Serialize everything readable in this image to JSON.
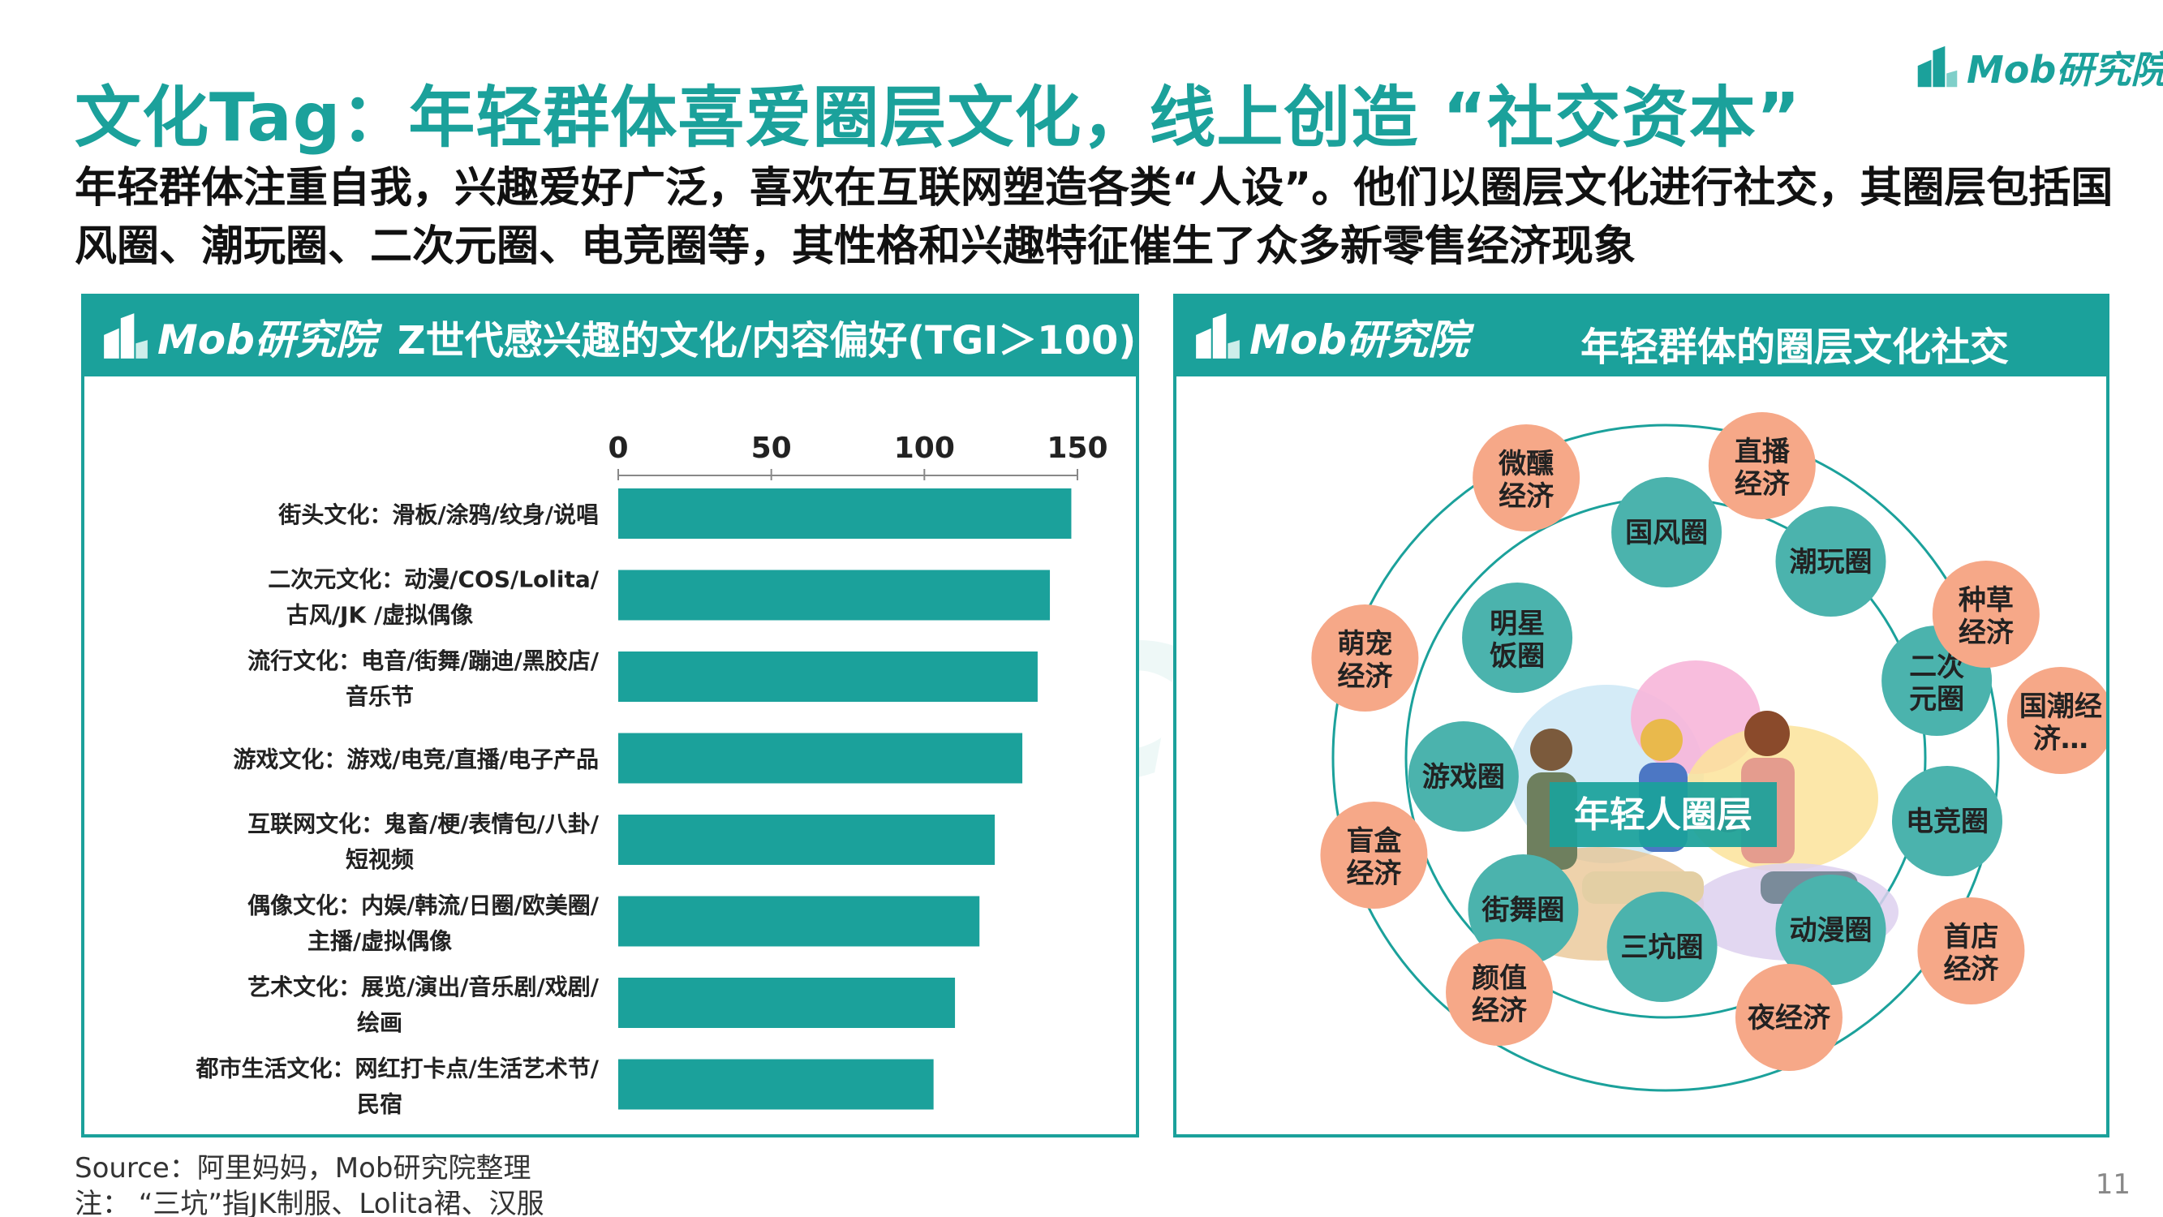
{
  "header": {
    "title": "文化Tag：年轻群体喜爱圈层文化，线上创造 “社交资本”",
    "logo_text": "Mob研究院",
    "subtitle": "年轻群体注重自我，兴趣爱好广泛，喜欢在互联网塑造各类“人设”。他们以圈层文化进行社交，其圈层包括国风圈、潮玩圈、二次元圈、电竞圈等，其性格和兴趣特征催生了众多新零售经济现象"
  },
  "left_panel": {
    "brand": "Mob研究院",
    "title": "Z世代感兴趣的文化/内容偏好(TGI＞100)"
  },
  "right_panel": {
    "brand": "Mob研究院",
    "title": "年轻群体的圈层文化社交",
    "center_label": "年轻人圈层",
    "inner_circles": [
      "国风圈",
      "潮玩圈",
      "明星饭圈",
      "二次元圈",
      "游戏圈",
      "电竞圈",
      "街舞圈",
      "动漫圈",
      "三坑圈"
    ],
    "outer_circles": [
      "直播经济",
      "微醺经济",
      "种草经济",
      "萌宠经济",
      "国潮经济…",
      "盲盒经济",
      "首店经济",
      "颜值经济",
      "夜经济"
    ]
  },
  "watermark": "MobTech 袤博",
  "chart_data": {
    "type": "bar",
    "orientation": "horizontal",
    "categories": [
      "街头文化：滑板/涂鸦/纹身/说唱",
      "二次元文化：动漫/COS/Lolita/古风/JK /虚拟偶像",
      "流行文化：电音/街舞/蹦迪/黑胶店/音乐节",
      "游戏文化：游戏/电竞/直播/电子产品",
      "互联网文化：鬼畜/梗/表情包/八卦/短视频",
      "偶像文化：内娱/韩流/日圈/欧美圈/主播/虚拟偶像",
      "艺术文化：展览/演出/音乐剧/戏剧/绘画",
      "都市生活文化：网红打卡点/生活艺术节/民宿"
    ],
    "values": [
      148,
      141,
      137,
      132,
      123,
      118,
      110,
      103
    ],
    "xlim": [
      0,
      150
    ],
    "xticks": [
      "0",
      "50",
      "100",
      "150"
    ],
    "axis_position": "top",
    "bar_color": "#1ba19b"
  },
  "footer": {
    "source": "Source：阿里妈妈，Mob研究院整理",
    "note": "注：  “三坑”指JK制服、Lolita裙、汉服",
    "page": "11"
  },
  "colors": {
    "accent": "#1ba19b",
    "inner_circle": "#4bb3ad",
    "outer_circle": "#f6a888"
  }
}
